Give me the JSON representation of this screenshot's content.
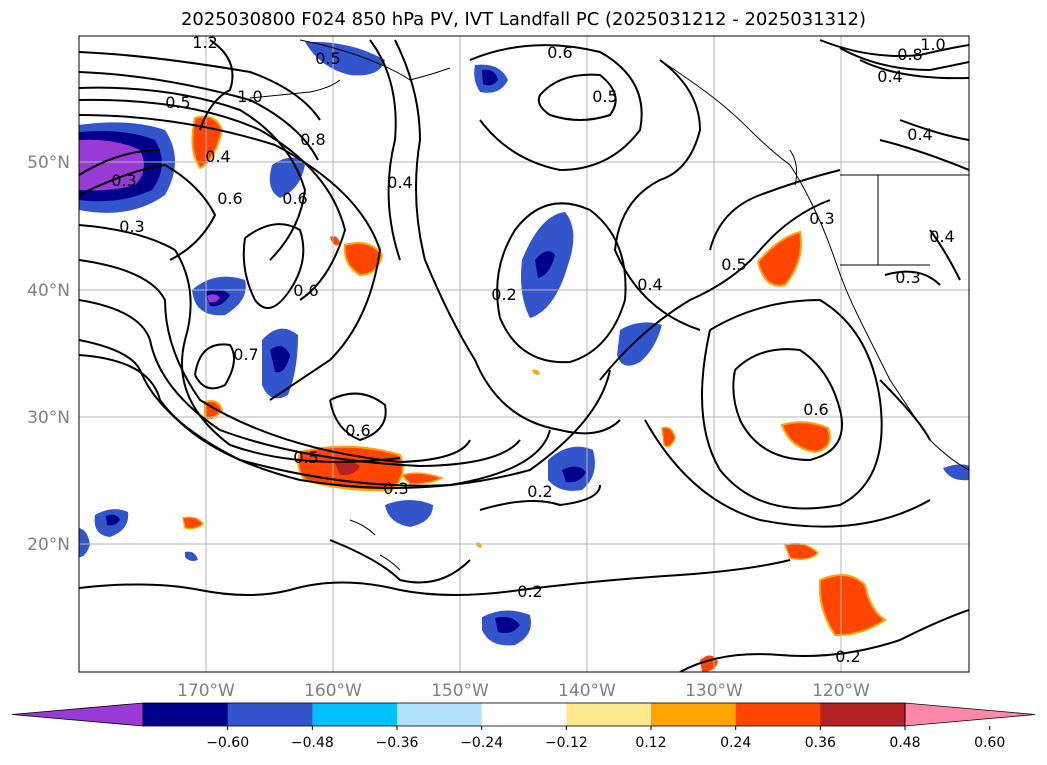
{
  "title": "2025030800 F024 850 hPa PV, IVT Landfall PC (2025031212 - 2025031312)",
  "map": {
    "lat_labels": [
      "50°N",
      "40°N",
      "30°N",
      "20°N"
    ],
    "lon_labels": [
      "170°W",
      "160°W",
      "150°W",
      "140°W",
      "130°W",
      "120°W"
    ],
    "grid": true,
    "axis_label_color": "#808080"
  },
  "contour_labels": [
    "1.2",
    "1.0",
    "0.5",
    "0.8",
    "0.6",
    "0.4",
    "0.5",
    "0.3",
    "0.6",
    "0.3",
    "0.4",
    "0.6",
    "0.6",
    "0.7",
    "0.2",
    "0.4",
    "0.5",
    "0.3",
    "0.6",
    "0.5",
    "0.3",
    "0.2",
    "0.6",
    "0.5",
    "0.2",
    "0.2",
    "0.8",
    "1.0",
    "0.4",
    "0.4",
    "0.4",
    "0.3"
  ],
  "colorbar": {
    "ticks": [
      "−0.60",
      "−0.48",
      "−0.36",
      "−0.24",
      "−0.12",
      "0.12",
      "0.24",
      "0.36",
      "0.48",
      "0.60"
    ],
    "colors": [
      "#9a3ad6",
      "#00008b",
      "#3355cc",
      "#00bfff",
      "#b0e0fa",
      "#ffffff",
      "#ffe98a",
      "#ffa500",
      "#ff4500",
      "#b22222",
      "#ff88aa"
    ]
  }
}
